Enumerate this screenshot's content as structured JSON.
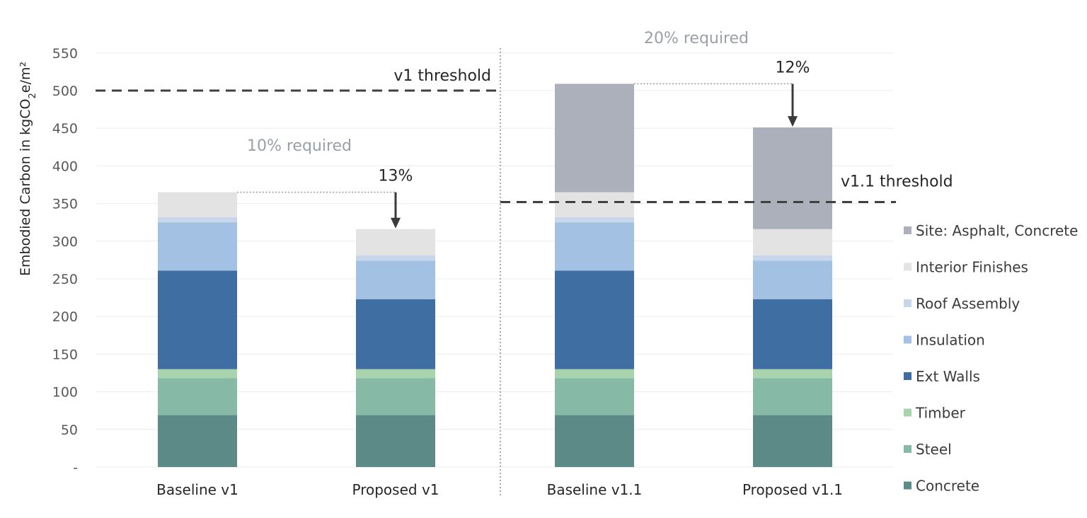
{
  "chart_data": {
    "type": "stacked-bar",
    "ylabel_prefix": "Embodied Carbon in kgCO",
    "ylabel_sub": "2",
    "ylabel_suffix": "e/m²",
    "ylim": [
      0,
      550
    ],
    "yticks": [
      "-",
      "50",
      "100",
      "150",
      "200",
      "250",
      "300",
      "350",
      "400",
      "450",
      "500",
      "550"
    ],
    "categories": [
      "Baseline v1",
      "Proposed v1",
      "Baseline v1.1",
      "Proposed v1.1"
    ],
    "series": [
      {
        "name": "Concrete",
        "color": "#5c8a86",
        "values": [
          69,
          69,
          69,
          69
        ]
      },
      {
        "name": "Steel",
        "color": "#86b9a6",
        "values": [
          49,
          49,
          49,
          49
        ]
      },
      {
        "name": "Timber",
        "color": "#a7d3ad",
        "values": [
          12,
          12,
          12,
          12
        ]
      },
      {
        "name": "Ext Walls",
        "color": "#3f6ea3",
        "values": [
          131,
          93,
          131,
          93
        ]
      },
      {
        "name": "Insulation",
        "color": "#a3c1e3",
        "values": [
          64,
          51,
          64,
          51
        ]
      },
      {
        "name": "Roof Assembly",
        "color": "#c7d6ea",
        "values": [
          7,
          7,
          7,
          7
        ]
      },
      {
        "name": "Interior Finishes",
        "color": "#e3e3e3",
        "values": [
          33,
          35,
          33,
          35
        ]
      },
      {
        "name": "Site: Asphalt,  Concrete",
        "color": "#abb0ba",
        "values": [
          0,
          0,
          144,
          135
        ]
      }
    ],
    "thresholds": [
      {
        "label": "v1 threshold",
        "value": 500
      },
      {
        "label": "v1.1 threshold",
        "value": 352
      }
    ],
    "annotations": [
      {
        "required": "10% required",
        "reduction": "13%"
      },
      {
        "required": "20% required",
        "reduction": "12%"
      }
    ]
  }
}
